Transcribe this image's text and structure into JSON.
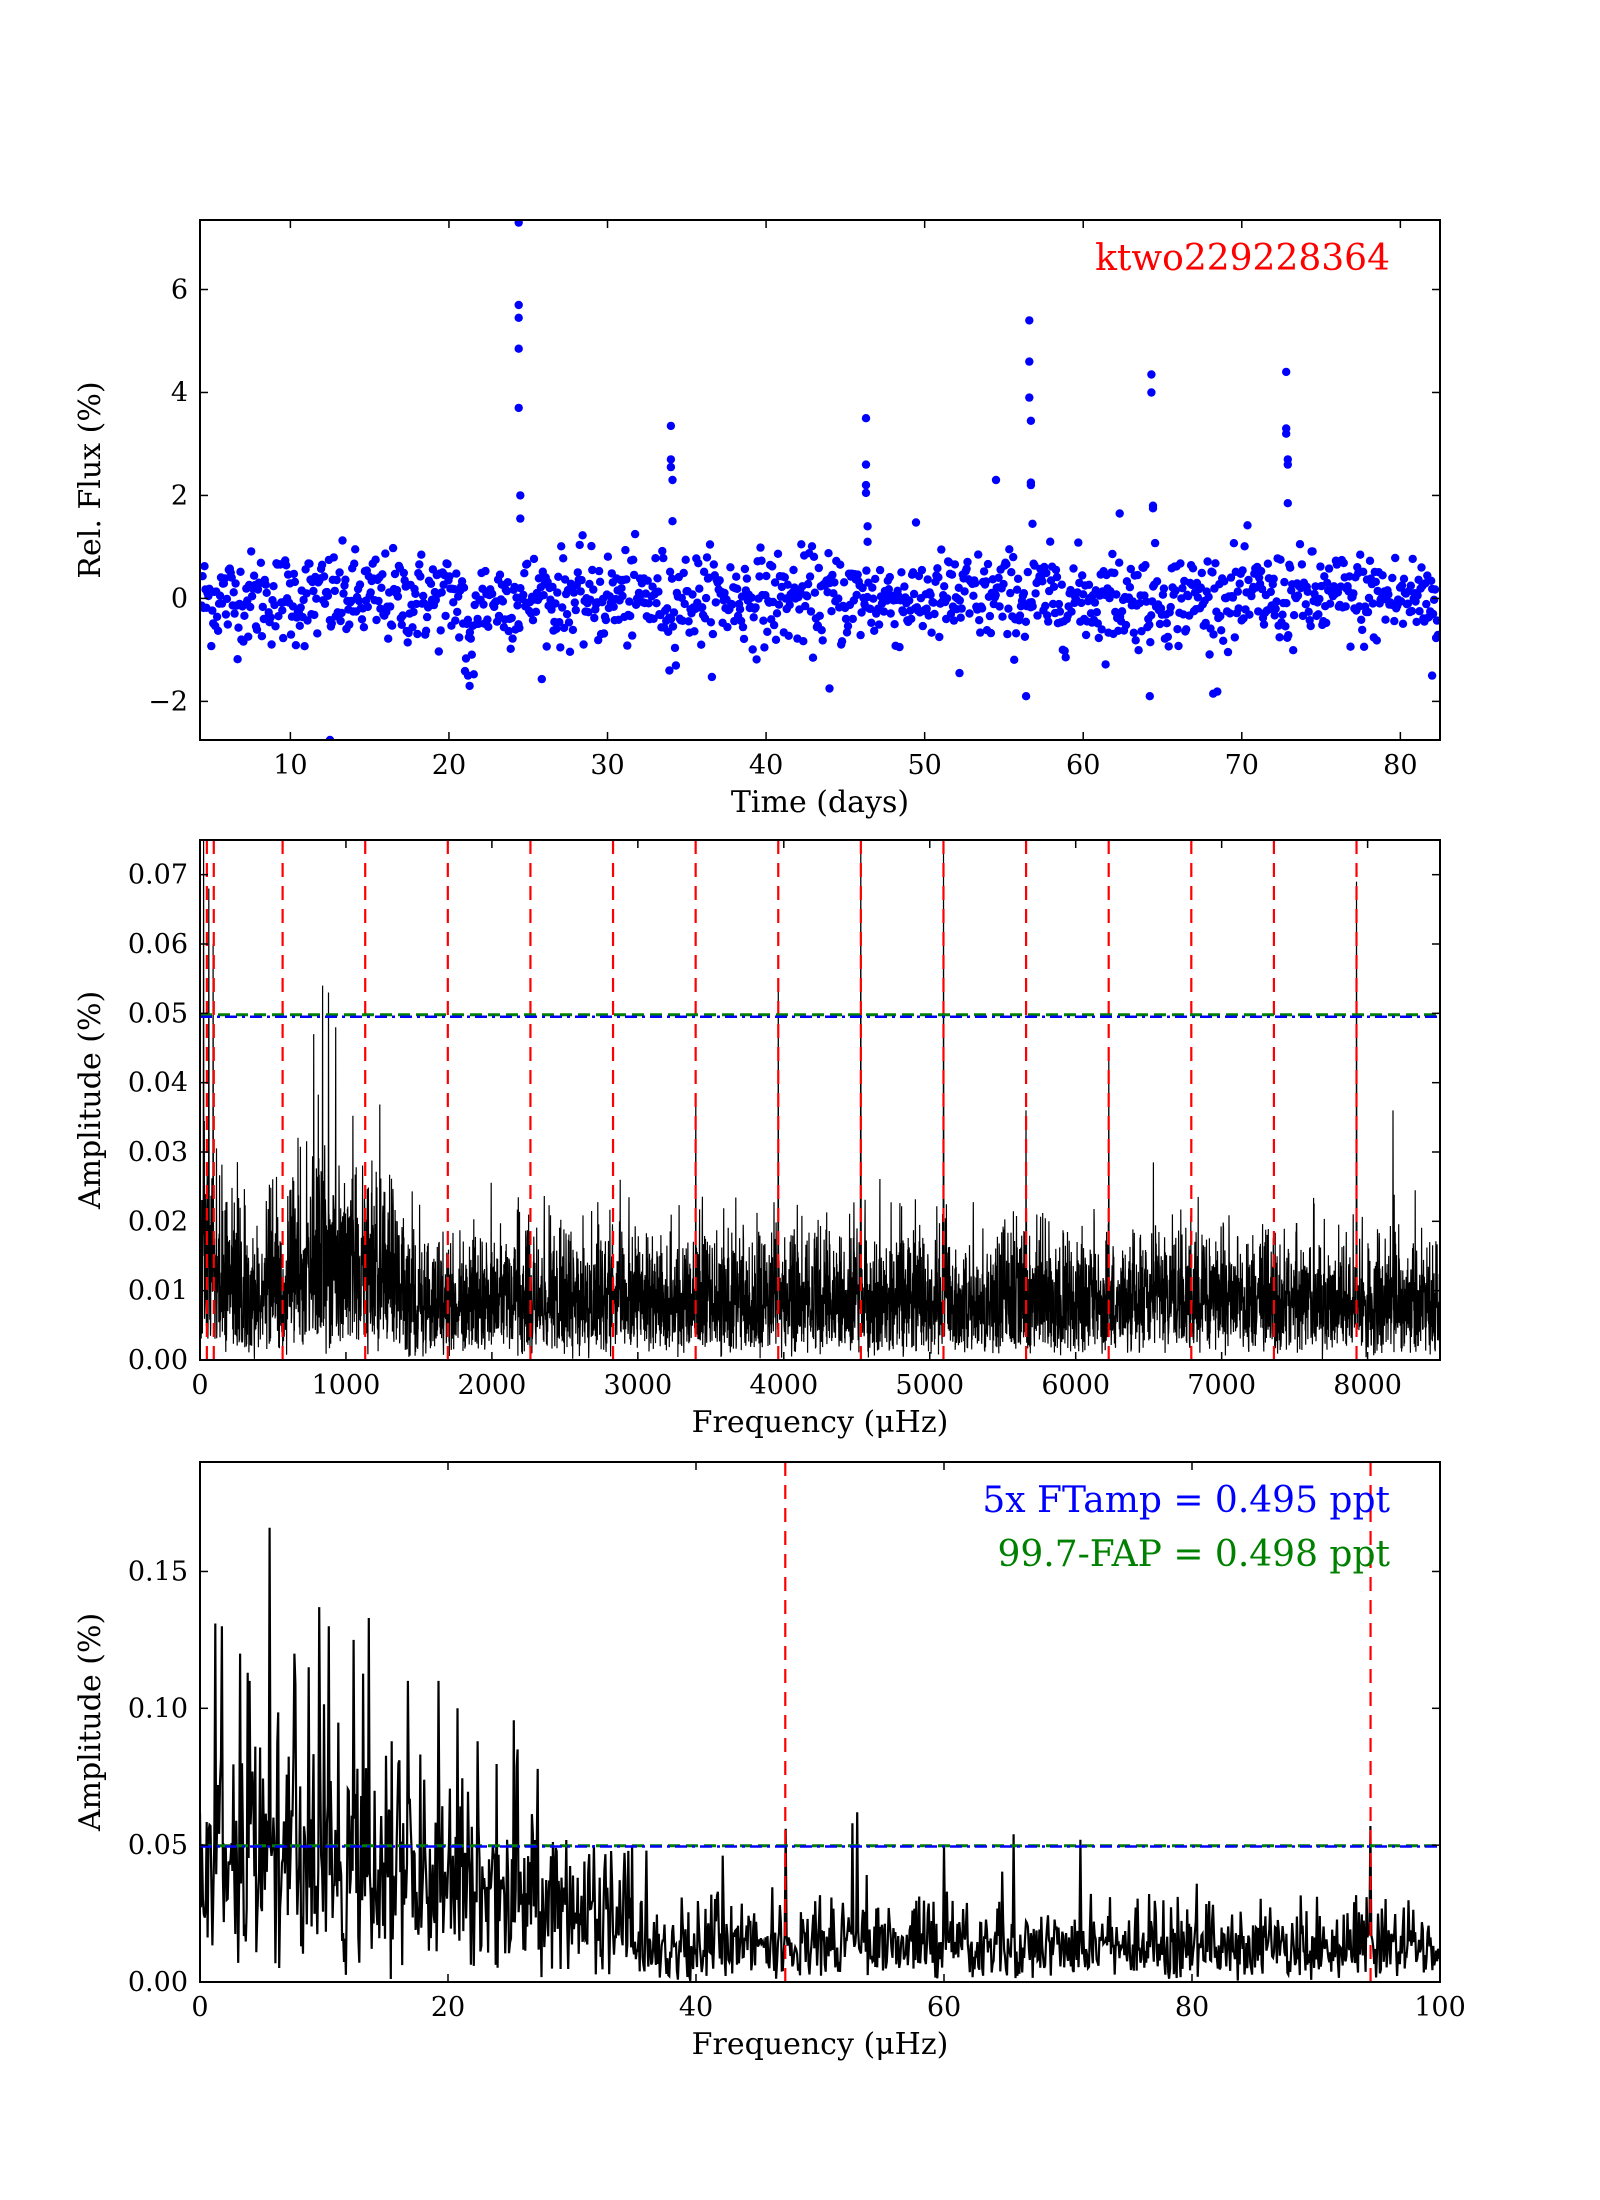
{
  "chart_data": [
    {
      "type": "scatter",
      "xlabel": "Time (days)",
      "ylabel": "Rel. Flux (%)",
      "xlim": [
        4.3,
        82.5
      ],
      "ylim": [
        -2.75,
        7.35
      ],
      "xticks": [
        10,
        20,
        30,
        40,
        50,
        60,
        70,
        80
      ],
      "yticks": [
        -2,
        0,
        2,
        4,
        6
      ],
      "ytick_labels": [
        "−2",
        "0",
        "2",
        "4",
        "6"
      ],
      "annotation": "ktwo229228364",
      "colors": {
        "points": "#0000ff",
        "annotation": "#ff0000"
      },
      "noise_sigma": 0.45,
      "flare_points": [
        [
          24.4,
          7.3
        ],
        [
          24.4,
          5.7
        ],
        [
          24.4,
          5.45
        ],
        [
          24.4,
          4.85
        ],
        [
          24.4,
          3.7
        ],
        [
          24.5,
          2.0
        ],
        [
          24.5,
          1.55
        ],
        [
          34.0,
          3.35
        ],
        [
          34.0,
          2.7
        ],
        [
          34.0,
          2.55
        ],
        [
          34.1,
          2.3
        ],
        [
          34.1,
          1.5
        ],
        [
          46.3,
          3.5
        ],
        [
          46.3,
          2.6
        ],
        [
          46.3,
          2.2
        ],
        [
          46.3,
          2.05
        ],
        [
          46.4,
          1.4
        ],
        [
          46.4,
          1.1
        ],
        [
          54.5,
          2.3
        ],
        [
          56.6,
          5.4
        ],
        [
          56.6,
          4.6
        ],
        [
          56.6,
          3.9
        ],
        [
          56.7,
          3.45
        ],
        [
          56.7,
          2.25
        ],
        [
          56.7,
          2.2
        ],
        [
          56.8,
          1.45
        ],
        [
          64.3,
          4.35
        ],
        [
          64.3,
          4.0
        ],
        [
          64.4,
          1.8
        ],
        [
          64.4,
          1.75
        ],
        [
          72.8,
          4.4
        ],
        [
          72.8,
          3.3
        ],
        [
          72.8,
          3.2
        ],
        [
          72.9,
          2.7
        ],
        [
          72.9,
          2.6
        ],
        [
          72.9,
          1.85
        ],
        [
          62.3,
          1.65
        ],
        [
          12.5,
          -2.75
        ],
        [
          44.0,
          -1.75
        ],
        [
          56.4,
          -1.9
        ],
        [
          64.2,
          -1.9
        ],
        [
          68.2,
          -1.85
        ],
        [
          82.0,
          -1.5
        ],
        [
          21.3,
          -1.7
        ],
        [
          21.2,
          -1.5
        ],
        [
          52.2,
          -1.45
        ],
        [
          33.9,
          -1.4
        ]
      ]
    },
    {
      "type": "line",
      "xlabel": "Frequency (μHz)",
      "ylabel": "Amplitude (%)",
      "xlim": [
        0,
        8496
      ],
      "ylim": [
        0,
        0.075
      ],
      "xticks": [
        0,
        1000,
        2000,
        3000,
        4000,
        5000,
        6000,
        7000,
        8000
      ],
      "yticks": [
        0.0,
        0.01,
        0.02,
        0.03,
        0.04,
        0.05,
        0.06,
        0.07
      ],
      "ytick_labels": [
        "0.00",
        "0.01",
        "0.02",
        "0.03",
        "0.04",
        "0.05",
        "0.06",
        "0.07"
      ],
      "threshold_5x_FTamp": 0.0495,
      "threshold_99_7_FAP": 0.0498,
      "vlines": [
        47,
        94.4,
        566,
        1132,
        1698,
        2264,
        2830,
        3396,
        3962,
        4528,
        5094,
        5660,
        6226,
        6792,
        7358,
        7924
      ],
      "peaks": [
        [
          3962,
          0.054
        ],
        [
          4528,
          0.076
        ],
        [
          5094,
          0.073
        ],
        [
          7924,
          0.069
        ],
        [
          6226,
          0.044
        ],
        [
          3396,
          0.038
        ],
        [
          5660,
          0.036
        ],
        [
          8174,
          0.036
        ],
        [
          840,
          0.054
        ],
        [
          880,
          0.053
        ],
        [
          930,
          0.048
        ],
        [
          780,
          0.047
        ],
        [
          25,
          0.075
        ],
        [
          60,
          0.068
        ],
        [
          90,
          0.06
        ]
      ],
      "colors": {
        "spectrum": "#000000",
        "vlines": "#ff0000",
        "ftamp": "#0000ff",
        "fap": "#008000"
      }
    },
    {
      "type": "line",
      "xlabel": "Frequency (μHz)",
      "ylabel": "Amplitude (%)",
      "xlim": [
        0,
        100
      ],
      "ylim": [
        0,
        0.19
      ],
      "xticks": [
        0,
        20,
        40,
        60,
        80,
        100
      ],
      "yticks": [
        0.0,
        0.05,
        0.1,
        0.15
      ],
      "ytick_labels": [
        "0.00",
        "0.05",
        "0.10",
        "0.15"
      ],
      "threshold_5x_FTamp": 0.0495,
      "threshold_99_7_FAP": 0.0498,
      "vlines": [
        47.2,
        94.4
      ],
      "peaks": [
        [
          5.6,
          0.166
        ],
        [
          1.2,
          0.131
        ],
        [
          1.8,
          0.13
        ],
        [
          9.6,
          0.137
        ],
        [
          10.4,
          0.13
        ],
        [
          13.6,
          0.133
        ],
        [
          7.6,
          0.12
        ],
        [
          12.4,
          0.125
        ],
        [
          16.8,
          0.11
        ],
        [
          19.2,
          0.11
        ],
        [
          20.8,
          0.1
        ],
        [
          22.4,
          0.088
        ],
        [
          25.6,
          0.085
        ],
        [
          8.8,
          0.115
        ],
        [
          4.0,
          0.11
        ],
        [
          3.2,
          0.12
        ],
        [
          53.0,
          0.062
        ],
        [
          52.6,
          0.058
        ],
        [
          47.2,
          0.056
        ],
        [
          94.4,
          0.057
        ],
        [
          65.6,
          0.054
        ],
        [
          71.0,
          0.052
        ],
        [
          60.0,
          0.05
        ],
        [
          36.0,
          0.048
        ]
      ],
      "annotations": [
        "5x FTamp = 0.495 ppt",
        "99.7-FAP = 0.498 ppt"
      ],
      "colors": {
        "spectrum": "#000000",
        "vlines": "#ff0000",
        "ftamp": "#0000ff",
        "fap": "#008000"
      }
    }
  ]
}
